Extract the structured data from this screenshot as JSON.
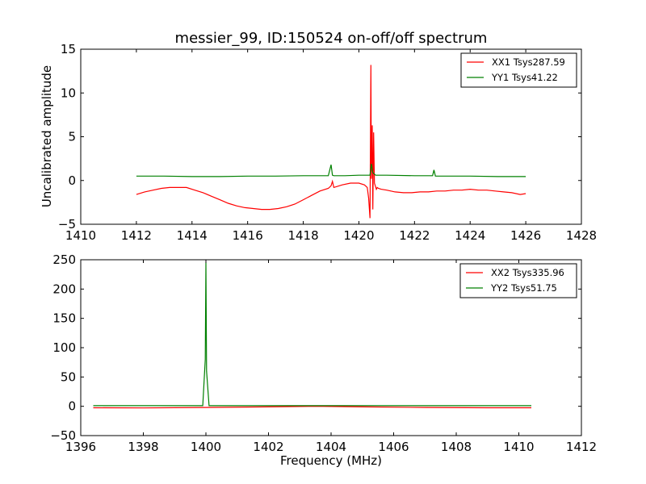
{
  "title": "messier_99, ID:150524 on-off/off spectrum",
  "xlabel": "Frequency (MHz)",
  "chart_data": [
    {
      "type": "line",
      "title": "messier_99, ID:150524 on-off/off spectrum",
      "xlabel": "",
      "ylabel": "Uncalibrated amplitude",
      "xlim": [
        1410,
        1428
      ],
      "ylim": [
        -5,
        15
      ],
      "xticks": [
        1410,
        1412,
        1414,
        1416,
        1418,
        1420,
        1422,
        1424,
        1426,
        1428
      ],
      "yticks": [
        -5,
        0,
        5,
        10,
        15
      ],
      "legend": "top-right",
      "series": [
        {
          "name": "XX1 Tsys287.59",
          "color": "#ff0000",
          "x": [
            1412.0,
            1412.3,
            1412.6,
            1412.9,
            1413.2,
            1413.5,
            1413.8,
            1414.1,
            1414.4,
            1414.7,
            1415.0,
            1415.3,
            1415.6,
            1415.9,
            1416.2,
            1416.5,
            1416.8,
            1417.1,
            1417.4,
            1417.7,
            1418.0,
            1418.3,
            1418.6,
            1418.9,
            1419.0,
            1419.05,
            1419.1,
            1419.4,
            1419.7,
            1420.0,
            1420.2,
            1420.3,
            1420.35,
            1420.4,
            1420.43,
            1420.45,
            1420.48,
            1420.5,
            1420.53,
            1420.56,
            1420.6,
            1420.63,
            1420.66,
            1420.7,
            1420.8,
            1421.0,
            1421.3,
            1421.6,
            1421.9,
            1422.2,
            1422.5,
            1422.8,
            1423.1,
            1423.4,
            1423.7,
            1424.0,
            1424.3,
            1424.6,
            1424.9,
            1425.2,
            1425.5,
            1425.8,
            1426.0
          ],
          "y": [
            -1.6,
            -1.3,
            -1.1,
            -0.9,
            -0.8,
            -0.8,
            -0.8,
            -1.1,
            -1.4,
            -1.8,
            -2.2,
            -2.6,
            -2.9,
            -3.1,
            -3.2,
            -3.3,
            -3.3,
            -3.2,
            -3.0,
            -2.7,
            -2.2,
            -1.7,
            -1.2,
            -0.9,
            -0.6,
            -0.1,
            -0.8,
            -0.5,
            -0.3,
            -0.3,
            -0.5,
            -0.8,
            -2.0,
            -4.3,
            13.2,
            0.2,
            6.3,
            -3.3,
            5.5,
            -0.3,
            -0.7,
            -1.0,
            -0.8,
            -0.9,
            -1.0,
            -1.1,
            -1.3,
            -1.4,
            -1.4,
            -1.3,
            -1.3,
            -1.2,
            -1.2,
            -1.1,
            -1.1,
            -1.0,
            -1.1,
            -1.1,
            -1.2,
            -1.3,
            -1.4,
            -1.6,
            -1.5
          ]
        },
        {
          "name": "YY1 Tsys41.22",
          "color": "#008000",
          "x": [
            1412.0,
            1413.0,
            1414.0,
            1415.0,
            1416.0,
            1417.0,
            1418.0,
            1418.9,
            1419.0,
            1419.05,
            1419.1,
            1419.5,
            1420.0,
            1420.4,
            1420.45,
            1420.5,
            1420.6,
            1421.0,
            1422.0,
            1422.65,
            1422.7,
            1422.75,
            1423.0,
            1424.0,
            1425.0,
            1426.0
          ],
          "y": [
            0.5,
            0.5,
            0.45,
            0.45,
            0.5,
            0.5,
            0.55,
            0.55,
            1.8,
            0.6,
            0.55,
            0.55,
            0.6,
            0.6,
            1.9,
            0.9,
            0.6,
            0.6,
            0.55,
            0.55,
            1.2,
            0.5,
            0.5,
            0.5,
            0.45,
            0.45
          ]
        }
      ]
    },
    {
      "type": "line",
      "title": "",
      "xlabel": "Frequency (MHz)",
      "ylabel": "",
      "xlim": [
        1396,
        1412
      ],
      "ylim": [
        -50,
        250
      ],
      "xticks": [
        1396,
        1398,
        1400,
        1402,
        1404,
        1406,
        1408,
        1410,
        1412
      ],
      "yticks": [
        -50,
        0,
        50,
        100,
        150,
        200,
        250
      ],
      "legend": "top-right",
      "series": [
        {
          "name": "XX2 Tsys335.96",
          "color": "#ff0000",
          "x": [
            1396.4,
            1398.0,
            1400.0,
            1402.0,
            1403.5,
            1405.0,
            1407.0,
            1409.0,
            1410.4
          ],
          "y": [
            -2.5,
            -2.8,
            -2.0,
            -1.0,
            0.0,
            -1.0,
            -2.0,
            -2.5,
            -2.5
          ]
        },
        {
          "name": "YY2 Tsys51.75",
          "color": "#008000",
          "x": [
            1396.4,
            1399.9,
            1399.98,
            1400.0,
            1400.02,
            1400.1,
            1402.0,
            1404.0,
            1406.0,
            1408.0,
            1410.4
          ],
          "y": [
            1.0,
            1.0,
            80.0,
            245.0,
            60.0,
            1.0,
            1.0,
            1.0,
            1.0,
            1.0,
            1.0
          ]
        }
      ]
    }
  ]
}
